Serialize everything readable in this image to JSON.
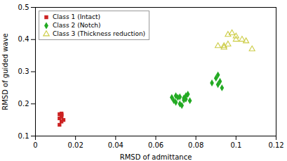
{
  "chart_data": {
    "type": "scatter",
    "xlabel": "RMSD of admittance",
    "ylabel": "RMSD of guided wave",
    "xlim": [
      0,
      0.12
    ],
    "ylim": [
      0.1,
      0.5
    ],
    "xticks": [
      0,
      0.02,
      0.04,
      0.06,
      0.08,
      0.1,
      0.12
    ],
    "yticks": [
      0.1,
      0.2,
      0.3,
      0.4,
      0.5
    ],
    "grid": false,
    "legend": "upper left",
    "series": [
      {
        "name": "Class 1 (Intact)",
        "color": "#cc2222",
        "marker": "square",
        "x": [
          0.012,
          0.013,
          0.013,
          0.013,
          0.012,
          0.014,
          0.013,
          0.013,
          0.012
        ],
        "y": [
          0.168,
          0.17,
          0.167,
          0.165,
          0.155,
          0.15,
          0.145,
          0.16,
          0.135
        ]
      },
      {
        "name": "Class 2 (Notch)",
        "color": "#22aa22",
        "marker": "diamond",
        "x": [
          0.068,
          0.07,
          0.072,
          0.074,
          0.075,
          0.077,
          0.07,
          0.072,
          0.074,
          0.076,
          0.071,
          0.073,
          0.075,
          0.069,
          0.09,
          0.091,
          0.092,
          0.088,
          0.091,
          0.093
        ],
        "y": [
          0.22,
          0.225,
          0.222,
          0.218,
          0.215,
          0.21,
          0.205,
          0.2,
          0.212,
          0.23,
          0.22,
          0.195,
          0.225,
          0.21,
          0.28,
          0.29,
          0.27,
          0.265,
          0.26,
          0.25
        ]
      },
      {
        "name": "Class 3 (Thickness reduction)",
        "color": "#cccc44",
        "marker": "triangle-open",
        "x": [
          0.091,
          0.094,
          0.096,
          0.098,
          0.1,
          0.094,
          0.096,
          0.1,
          0.103,
          0.105,
          0.108
        ],
        "y": [
          0.38,
          0.38,
          0.415,
          0.42,
          0.41,
          0.375,
          0.385,
          0.4,
          0.4,
          0.395,
          0.37
        ]
      }
    ]
  }
}
